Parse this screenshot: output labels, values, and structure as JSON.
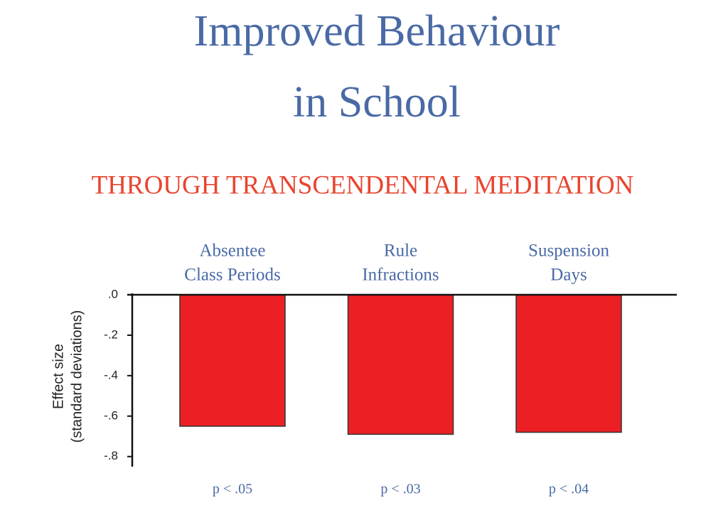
{
  "chart_data": {
    "type": "bar",
    "title": [
      "Improved Behaviour",
      "in School"
    ],
    "subtitle": "THROUGH TRANSCENDENTAL MEDITATION",
    "ylabel": [
      "Effect size",
      "(standard deviations)"
    ],
    "categories": [
      [
        "Absentee",
        "Class Periods"
      ],
      [
        "Rule",
        "Infractions"
      ],
      [
        "Suspension",
        "Days"
      ]
    ],
    "values": [
      -0.65,
      -0.69,
      -0.68
    ],
    "p_values": [
      "p < .05",
      "p < .03",
      "p < .04"
    ],
    "color": "#ec2024",
    "ylim": [
      -0.85,
      0
    ],
    "yticks": [
      {
        "value": 0,
        "label": ".0"
      },
      {
        "value": -0.2,
        "label": "-.2"
      },
      {
        "value": -0.4,
        "label": "-.4"
      },
      {
        "value": -0.6,
        "label": "-.6"
      },
      {
        "value": -0.8,
        "label": "-.8"
      }
    ]
  }
}
